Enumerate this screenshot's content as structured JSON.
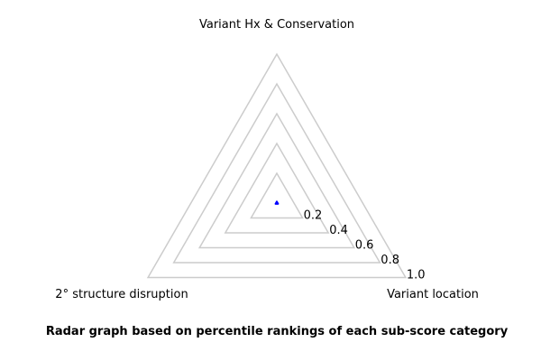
{
  "chart_data": {
    "type": "radar",
    "axes": [
      "Variant Hx & Conservation",
      "Variant location",
      "2° structure disruption"
    ],
    "rings": [
      0.2,
      0.4,
      0.6,
      0.8,
      1.0
    ],
    "ring_labels": [
      "0.2",
      "0.4",
      "0.6",
      "0.8",
      "1.0"
    ],
    "range": [
      0,
      1.0
    ],
    "series": [
      {
        "values": [
          0.01,
          0.01,
          0.01
        ],
        "color": "#0000ff"
      }
    ],
    "grid_color": "#cccccc",
    "caption": "Radar graph based on percentile rankings of each sub-score category"
  }
}
